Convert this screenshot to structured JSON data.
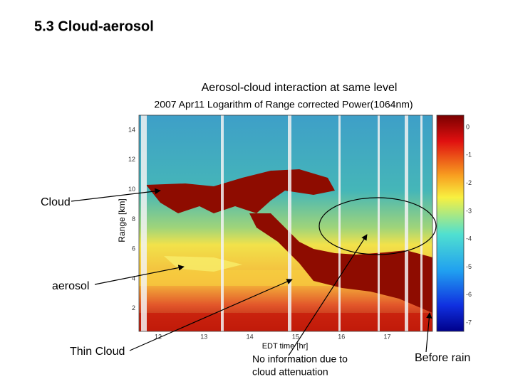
{
  "slide": {
    "title": "5.3 Cloud-aerosol",
    "subtitle": "Aerosol-cloud interaction at same level",
    "figure": {
      "title": "2007 Apr11  Logarithm of Range corrected Power(1064nm)",
      "y_label": "Range [km]",
      "x_label": "EDT time [hr]",
      "y_ticks": [
        "14",
        "12",
        "10",
        "8",
        "6",
        "4",
        "2"
      ],
      "x_ticks": [
        "12",
        "13",
        "14",
        "15",
        "16",
        "17"
      ],
      "colorbar_ticks": [
        "0",
        "-1",
        "-2",
        "-3",
        "-4",
        "-5",
        "-6",
        "-7"
      ]
    },
    "annotations": {
      "cloud": "Cloud",
      "aerosol": "aerosol",
      "thin_cloud": "Thin Cloud",
      "no_information": [
        "No information due to",
        "cloud attenuation"
      ],
      "before_rain": "Before rain"
    }
  }
}
